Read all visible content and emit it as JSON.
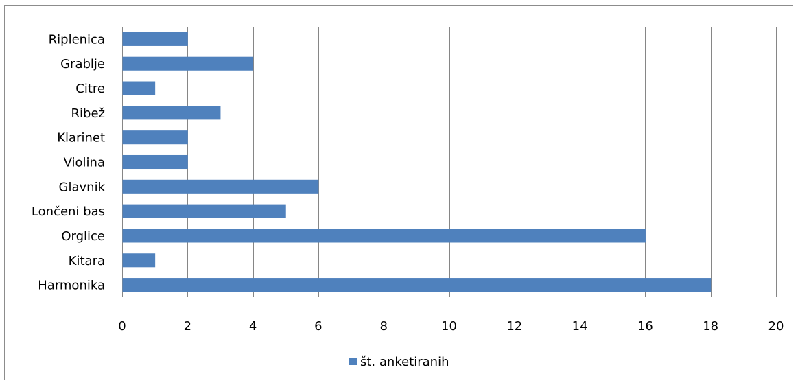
{
  "chart_data": {
    "type": "bar",
    "orientation": "horizontal",
    "categories": [
      "Riplenica",
      "Grablje",
      "Citre",
      "Ribež",
      "Klarinet",
      "Violina",
      "Glavnik",
      "Lončeni bas",
      "Orglice",
      "Kitara",
      "Harmonika"
    ],
    "series": [
      {
        "name": "št. anketiranih",
        "values": [
          2,
          4,
          1,
          3,
          2,
          2,
          6,
          5,
          16,
          1,
          18
        ],
        "color": "#4f81bd"
      }
    ],
    "xlim": [
      0,
      20
    ],
    "xticks": [
      0,
      2,
      4,
      6,
      8,
      10,
      12,
      14,
      16,
      18,
      20
    ],
    "grid": "vertical",
    "legend_position": "bottom"
  }
}
